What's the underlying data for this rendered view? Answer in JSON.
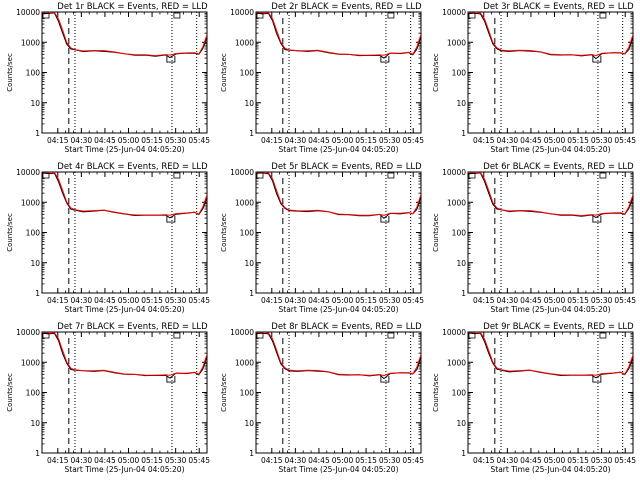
{
  "chart_data": [
    {
      "type": "line",
      "title": "Det 1r  BLACK = Events, RED = LLD",
      "xlabel": "Start Time (25-Jun-04 04:05:20)",
      "ylabel": "Counts/sec",
      "x_ticks": [
        "04:15",
        "04:30",
        "04:45",
        "05:00",
        "05:15",
        "05:30",
        "05:45"
      ],
      "y_ticks": [
        "1",
        "10",
        "100",
        "1000",
        "10000"
      ],
      "yscale": "log",
      "ylim": [
        1,
        10000
      ],
      "xlim_minutes": [
        0,
        80
      ],
      "series": [
        {
          "name": "Events",
          "color": "#000000"
        },
        {
          "name": "LLD",
          "color": "#ff0000"
        }
      ],
      "markers": {
        "dashed_minutes": 13,
        "dotted_minutes": [
          16,
          63,
          75
        ]
      }
    },
    {
      "type": "line",
      "title": "Det 2r  BLACK = Events, RED = LLD",
      "xlabel": "Start Time (25-Jun-04 04:05:20)",
      "ylabel": "Counts/sec",
      "x_ticks": [
        "04:15",
        "04:30",
        "04:45",
        "05:00",
        "05:15",
        "05:30",
        "05:45"
      ],
      "y_ticks": [
        "1",
        "10",
        "100",
        "1000",
        "10000"
      ],
      "yscale": "log",
      "ylim": [
        1,
        10000
      ],
      "xlim_minutes": [
        0,
        80
      ],
      "series": [
        {
          "name": "Events",
          "color": "#000000"
        },
        {
          "name": "LLD",
          "color": "#ff0000"
        }
      ],
      "markers": {
        "dashed_minutes": 13,
        "dotted_minutes": [
          16,
          63,
          75
        ]
      }
    },
    {
      "type": "line",
      "title": "Det 3r  BLACK = Events, RED = LLD",
      "xlabel": "Start Time (25-Jun-04 04:05:20)",
      "ylabel": "Counts/sec",
      "x_ticks": [
        "04:15",
        "04:30",
        "04:45",
        "05:00",
        "05:15",
        "05:30",
        "05:45"
      ],
      "y_ticks": [
        "1",
        "10",
        "100",
        "1000",
        "10000"
      ],
      "yscale": "log",
      "ylim": [
        1,
        10000
      ],
      "xlim_minutes": [
        0,
        80
      ],
      "series": [
        {
          "name": "Events",
          "color": "#000000"
        },
        {
          "name": "LLD",
          "color": "#ff0000"
        }
      ],
      "markers": {
        "dashed_minutes": 13,
        "dotted_minutes": [
          16,
          63,
          75
        ]
      }
    },
    {
      "type": "line",
      "title": "Det 4r  BLACK = Events, RED = LLD",
      "xlabel": "Start Time (25-Jun-04 04:05:20)",
      "ylabel": "Counts/sec",
      "x_ticks": [
        "04:15",
        "04:30",
        "04:45",
        "05:00",
        "05:15",
        "05:30",
        "05:45"
      ],
      "y_ticks": [
        "1",
        "10",
        "100",
        "1000",
        "10000"
      ],
      "yscale": "log",
      "ylim": [
        1,
        10000
      ],
      "xlim_minutes": [
        0,
        80
      ],
      "series": [
        {
          "name": "Events",
          "color": "#000000"
        },
        {
          "name": "LLD",
          "color": "#ff0000"
        }
      ],
      "markers": {
        "dashed_minutes": 13,
        "dotted_minutes": [
          16,
          63,
          75
        ]
      }
    },
    {
      "type": "line",
      "title": "Det 5r  BLACK = Events, RED = LLD",
      "xlabel": "Start Time (25-Jun-04 04:05:20)",
      "ylabel": "Counts/sec",
      "x_ticks": [
        "04:15",
        "04:30",
        "04:45",
        "05:00",
        "05:15",
        "05:30",
        "05:45"
      ],
      "y_ticks": [
        "1",
        "10",
        "100",
        "1000",
        "10000"
      ],
      "yscale": "log",
      "ylim": [
        1,
        10000
      ],
      "xlim_minutes": [
        0,
        80
      ],
      "series": [
        {
          "name": "Events",
          "color": "#000000"
        },
        {
          "name": "LLD",
          "color": "#ff0000"
        }
      ],
      "markers": {
        "dashed_minutes": 13,
        "dotted_minutes": [
          16,
          63,
          75
        ]
      }
    },
    {
      "type": "line",
      "title": "Det 6r  BLACK = Events, RED = LLD",
      "xlabel": "Start Time (25-Jun-04 04:05:20)",
      "ylabel": "Counts/sec",
      "x_ticks": [
        "04:15",
        "04:30",
        "04:45",
        "05:00",
        "05:15",
        "05:30",
        "05:45"
      ],
      "y_ticks": [
        "1",
        "10",
        "100",
        "1000",
        "10000"
      ],
      "yscale": "log",
      "ylim": [
        1,
        10000
      ],
      "xlim_minutes": [
        0,
        80
      ],
      "series": [
        {
          "name": "Events",
          "color": "#000000"
        },
        {
          "name": "LLD",
          "color": "#ff0000"
        }
      ],
      "markers": {
        "dashed_minutes": 13,
        "dotted_minutes": [
          16,
          63,
          75
        ]
      }
    },
    {
      "type": "line",
      "title": "Det 7r  BLACK = Events, RED = LLD",
      "xlabel": "Start Time (25-Jun-04 04:05:20)",
      "ylabel": "Counts/sec",
      "x_ticks": [
        "04:15",
        "04:30",
        "04:45",
        "05:00",
        "05:15",
        "05:30",
        "05:45"
      ],
      "y_ticks": [
        "1",
        "10",
        "100",
        "1000",
        "10000"
      ],
      "yscale": "log",
      "ylim": [
        1,
        10000
      ],
      "xlim_minutes": [
        0,
        80
      ],
      "series": [
        {
          "name": "Events",
          "color": "#000000"
        },
        {
          "name": "LLD",
          "color": "#ff0000"
        }
      ],
      "markers": {
        "dashed_minutes": 13,
        "dotted_minutes": [
          16,
          63,
          75
        ]
      }
    },
    {
      "type": "line",
      "title": "Det 8r  BLACK = Events, RED = LLD",
      "xlabel": "Start Time (25-Jun-04 04:05:20)",
      "ylabel": "Counts/sec",
      "x_ticks": [
        "04:15",
        "04:30",
        "04:45",
        "05:00",
        "05:15",
        "05:30",
        "05:45"
      ],
      "y_ticks": [
        "1",
        "10",
        "100",
        "1000",
        "10000"
      ],
      "yscale": "log",
      "ylim": [
        1,
        10000
      ],
      "xlim_minutes": [
        0,
        80
      ],
      "series": [
        {
          "name": "Events",
          "color": "#000000"
        },
        {
          "name": "LLD",
          "color": "#ff0000"
        }
      ],
      "markers": {
        "dashed_minutes": 13,
        "dotted_minutes": [
          16,
          63,
          75
        ]
      }
    },
    {
      "type": "line",
      "title": "Det 9r  BLACK = Events, RED = LLD",
      "xlabel": "Start Time (25-Jun-04 04:05:20)",
      "ylabel": "Counts/sec",
      "x_ticks": [
        "04:15",
        "04:30",
        "04:45",
        "05:00",
        "05:15",
        "05:30",
        "05:45"
      ],
      "y_ticks": [
        "1",
        "10",
        "100",
        "1000",
        "10000"
      ],
      "yscale": "log",
      "ylim": [
        1,
        10000
      ],
      "xlim_minutes": [
        0,
        80
      ],
      "series": [
        {
          "name": "Events",
          "color": "#000000"
        },
        {
          "name": "LLD",
          "color": "#ff0000"
        }
      ],
      "markers": {
        "dashed_minutes": 13,
        "dotted_minutes": [
          16,
          63,
          75
        ]
      }
    }
  ],
  "curve": {
    "minutes": [
      0,
      3,
      6,
      8,
      10,
      12,
      14,
      16,
      20,
      25,
      30,
      35,
      40,
      45,
      50,
      55,
      60,
      62,
      65,
      70,
      74,
      76,
      78,
      80
    ],
    "events": [
      9000,
      9000,
      9000,
      5000,
      2000,
      900,
      600,
      540,
      500,
      510,
      520,
      470,
      400,
      380,
      370,
      360,
      380,
      300,
      420,
      430,
      450,
      400,
      600,
      1500
    ],
    "lld": [
      10000,
      10000,
      9500,
      6000,
      2500,
      1000,
      650,
      560,
      520,
      530,
      540,
      480,
      410,
      390,
      380,
      370,
      390,
      370,
      430,
      440,
      460,
      410,
      700,
      1800
    ]
  }
}
